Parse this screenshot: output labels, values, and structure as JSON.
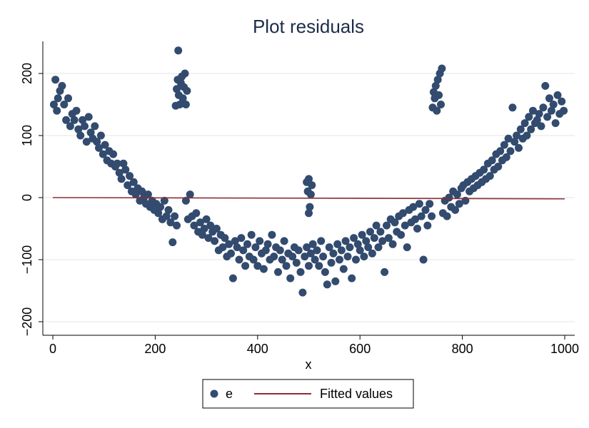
{
  "chart_data": {
    "type": "scatter",
    "title": "Plot residuals",
    "xlabel": "x",
    "ylabel": "",
    "xlim": [
      0,
      1000
    ],
    "ylim": [
      -200,
      250
    ],
    "xticks": [
      0,
      200,
      400,
      600,
      800,
      1000
    ],
    "yticks": [
      -200,
      -100,
      0,
      100,
      200
    ],
    "xtick_labels": [
      "0",
      "200",
      "400",
      "600",
      "800",
      "1000"
    ],
    "ytick_labels": [
      "−200",
      "−100",
      "0",
      "100",
      "200"
    ],
    "grid": true,
    "legend_position": "bottom",
    "series": [
      {
        "name": "e",
        "kind": "scatter",
        "color": "#324b6e",
        "points": [
          [
            2,
            150
          ],
          [
            5,
            190
          ],
          [
            8,
            140
          ],
          [
            10,
            160
          ],
          [
            14,
            172
          ],
          [
            18,
            180
          ],
          [
            22,
            150
          ],
          [
            26,
            125
          ],
          [
            30,
            160
          ],
          [
            34,
            115
          ],
          [
            38,
            135
          ],
          [
            42,
            125
          ],
          [
            46,
            140
          ],
          [
            50,
            110
          ],
          [
            54,
            100
          ],
          [
            58,
            125
          ],
          [
            62,
            115
          ],
          [
            66,
            90
          ],
          [
            70,
            130
          ],
          [
            74,
            105
          ],
          [
            78,
            95
          ],
          [
            82,
            115
          ],
          [
            86,
            90
          ],
          [
            90,
            80
          ],
          [
            94,
            100
          ],
          [
            98,
            70
          ],
          [
            102,
            85
          ],
          [
            106,
            60
          ],
          [
            110,
            75
          ],
          [
            114,
            55
          ],
          [
            118,
            70
          ],
          [
            122,
            50
          ],
          [
            126,
            55
          ],
          [
            130,
            40
          ],
          [
            134,
            30
          ],
          [
            138,
            55
          ],
          [
            142,
            45
          ],
          [
            146,
            20
          ],
          [
            150,
            35
          ],
          [
            154,
            10
          ],
          [
            158,
            25
          ],
          [
            162,
            5
          ],
          [
            166,
            15
          ],
          [
            170,
            -5
          ],
          [
            174,
            10
          ],
          [
            178,
            0
          ],
          [
            182,
            -10
          ],
          [
            186,
            5
          ],
          [
            190,
            -15
          ],
          [
            194,
            -5
          ],
          [
            198,
            -20
          ],
          [
            202,
            -10
          ],
          [
            206,
            -25
          ],
          [
            210,
            -15
          ],
          [
            214,
            -35
          ],
          [
            218,
            -5
          ],
          [
            222,
            -30
          ],
          [
            226,
            -20
          ],
          [
            230,
            -40
          ],
          [
            234,
            -72
          ],
          [
            238,
            -30
          ],
          [
            242,
            -45
          ],
          [
            240,
            148
          ],
          [
            242,
            175
          ],
          [
            244,
            190
          ],
          [
            245,
            237
          ],
          [
            246,
            165
          ],
          [
            248,
            150
          ],
          [
            250,
            185
          ],
          [
            252,
            195
          ],
          [
            254,
            160
          ],
          [
            256,
            178
          ],
          [
            258,
            200
          ],
          [
            260,
            150
          ],
          [
            262,
            172
          ],
          [
            260,
            -5
          ],
          [
            264,
            -35
          ],
          [
            268,
            5
          ],
          [
            272,
            -30
          ],
          [
            276,
            -45
          ],
          [
            280,
            -25
          ],
          [
            284,
            -55
          ],
          [
            288,
            -40
          ],
          [
            292,
            -60
          ],
          [
            296,
            -50
          ],
          [
            300,
            -35
          ],
          [
            304,
            -65
          ],
          [
            308,
            -45
          ],
          [
            312,
            -55
          ],
          [
            316,
            -70
          ],
          [
            320,
            -50
          ],
          [
            324,
            -85
          ],
          [
            328,
            -60
          ],
          [
            332,
            -80
          ],
          [
            336,
            -65
          ],
          [
            340,
            -95
          ],
          [
            344,
            -75
          ],
          [
            348,
            -90
          ],
          [
            352,
            -130
          ],
          [
            356,
            -70
          ],
          [
            360,
            -80
          ],
          [
            364,
            -100
          ],
          [
            368,
            -65
          ],
          [
            372,
            -85
          ],
          [
            376,
            -110
          ],
          [
            380,
            -75
          ],
          [
            384,
            -95
          ],
          [
            388,
            -60
          ],
          [
            392,
            -100
          ],
          [
            396,
            -80
          ],
          [
            400,
            -110
          ],
          [
            404,
            -70
          ],
          [
            408,
            -90
          ],
          [
            412,
            -115
          ],
          [
            416,
            -85
          ],
          [
            420,
            -75
          ],
          [
            424,
            -100
          ],
          [
            428,
            -60
          ],
          [
            432,
            -95
          ],
          [
            436,
            -80
          ],
          [
            440,
            -120
          ],
          [
            444,
            -85
          ],
          [
            448,
            -100
          ],
          [
            452,
            -70
          ],
          [
            456,
            -110
          ],
          [
            460,
            -90
          ],
          [
            464,
            -130
          ],
          [
            468,
            -95
          ],
          [
            472,
            -80
          ],
          [
            476,
            -105
          ],
          [
            480,
            -85
          ],
          [
            484,
            -120
          ],
          [
            488,
            -153
          ],
          [
            492,
            -95
          ],
          [
            496,
            -80
          ],
          [
            500,
            -110
          ],
          [
            496,
            25
          ],
          [
            498,
            10
          ],
          [
            500,
            30
          ],
          [
            502,
            -15
          ],
          [
            504,
            5
          ],
          [
            506,
            20
          ],
          [
            500,
            -25
          ],
          [
            504,
            -90
          ],
          [
            508,
            -75
          ],
          [
            512,
            -100
          ],
          [
            516,
            -85
          ],
          [
            520,
            -110
          ],
          [
            524,
            -70
          ],
          [
            528,
            -95
          ],
          [
            532,
            -120
          ],
          [
            536,
            -140
          ],
          [
            540,
            -80
          ],
          [
            544,
            -105
          ],
          [
            548,
            -90
          ],
          [
            552,
            -135
          ],
          [
            556,
            -75
          ],
          [
            560,
            -100
          ],
          [
            564,
            -85
          ],
          [
            568,
            -115
          ],
          [
            572,
            -70
          ],
          [
            576,
            -95
          ],
          [
            580,
            -80
          ],
          [
            584,
            -130
          ],
          [
            588,
            -65
          ],
          [
            592,
            -100
          ],
          [
            596,
            -75
          ],
          [
            600,
            -85
          ],
          [
            604,
            -60
          ],
          [
            608,
            -95
          ],
          [
            612,
            -70
          ],
          [
            616,
            -80
          ],
          [
            620,
            -55
          ],
          [
            624,
            -90
          ],
          [
            628,
            -65
          ],
          [
            632,
            -45
          ],
          [
            636,
            -80
          ],
          [
            640,
            -55
          ],
          [
            644,
            -70
          ],
          [
            648,
            -120
          ],
          [
            652,
            -45
          ],
          [
            656,
            -65
          ],
          [
            660,
            -35
          ],
          [
            664,
            -75
          ],
          [
            668,
            -40
          ],
          [
            672,
            -55
          ],
          [
            676,
            -30
          ],
          [
            680,
            -60
          ],
          [
            684,
            -25
          ],
          [
            688,
            -45
          ],
          [
            692,
            -80
          ],
          [
            696,
            -20
          ],
          [
            700,
            -40
          ],
          [
            704,
            -15
          ],
          [
            708,
            -35
          ],
          [
            712,
            -50
          ],
          [
            716,
            -10
          ],
          [
            720,
            -30
          ],
          [
            724,
            -100
          ],
          [
            728,
            -20
          ],
          [
            732,
            -45
          ],
          [
            736,
            -10
          ],
          [
            740,
            -30
          ],
          [
            742,
            145
          ],
          [
            744,
            170
          ],
          [
            746,
            160
          ],
          [
            748,
            180
          ],
          [
            750,
            140
          ],
          [
            752,
            190
          ],
          [
            754,
            165
          ],
          [
            756,
            200
          ],
          [
            758,
            150
          ],
          [
            760,
            208
          ],
          [
            762,
            -25
          ],
          [
            766,
            -5
          ],
          [
            770,
            -30
          ],
          [
            774,
            0
          ],
          [
            778,
            -15
          ],
          [
            782,
            10
          ],
          [
            786,
            -20
          ],
          [
            790,
            5
          ],
          [
            794,
            -10
          ],
          [
            798,
            15
          ],
          [
            802,
            20
          ],
          [
            806,
            -5
          ],
          [
            810,
            25
          ],
          [
            814,
            10
          ],
          [
            818,
            30
          ],
          [
            822,
            15
          ],
          [
            826,
            35
          ],
          [
            830,
            20
          ],
          [
            834,
            40
          ],
          [
            838,
            25
          ],
          [
            842,
            45
          ],
          [
            846,
            30
          ],
          [
            850,
            55
          ],
          [
            854,
            35
          ],
          [
            858,
            60
          ],
          [
            862,
            45
          ],
          [
            866,
            70
          ],
          [
            870,
            50
          ],
          [
            874,
            75
          ],
          [
            878,
            60
          ],
          [
            882,
            85
          ],
          [
            886,
            65
          ],
          [
            890,
            95
          ],
          [
            894,
            75
          ],
          [
            898,
            145
          ],
          [
            902,
            90
          ],
          [
            906,
            100
          ],
          [
            910,
            80
          ],
          [
            914,
            110
          ],
          [
            918,
            95
          ],
          [
            922,
            120
          ],
          [
            926,
            100
          ],
          [
            930,
            130
          ],
          [
            934,
            110
          ],
          [
            938,
            140
          ],
          [
            942,
            120
          ],
          [
            946,
            125
          ],
          [
            950,
            135
          ],
          [
            954,
            115
          ],
          [
            958,
            145
          ],
          [
            962,
            180
          ],
          [
            966,
            130
          ],
          [
            970,
            160
          ],
          [
            974,
            140
          ],
          [
            978,
            150
          ],
          [
            982,
            120
          ],
          [
            986,
            165
          ],
          [
            990,
            135
          ],
          [
            994,
            155
          ],
          [
            998,
            140
          ]
        ]
      },
      {
        "name": "Fitted values",
        "kind": "line",
        "color": "#8b2e35",
        "x": [
          0,
          1000
        ],
        "y": [
          0,
          -2
        ]
      }
    ]
  }
}
